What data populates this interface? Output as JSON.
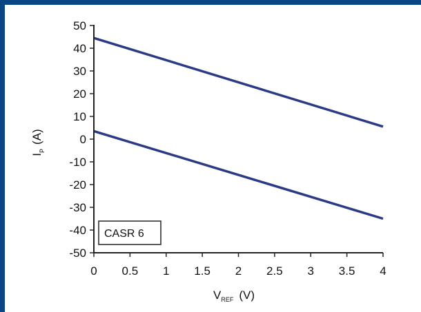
{
  "colors": {
    "frame": "#0a4683",
    "series": "#2a3a86",
    "axis": "#222222"
  },
  "chart_data": {
    "type": "line",
    "xlim": [
      0,
      4
    ],
    "ylim": [
      -50,
      50
    ],
    "xticks": [
      "0",
      "0.5",
      "1",
      "1.5",
      "2",
      "2.5",
      "3",
      "3.5",
      "4"
    ],
    "yticks": [
      "50",
      "40",
      "30",
      "20",
      "10",
      "0",
      "-10",
      "-20",
      "-30",
      "-40",
      "-50"
    ],
    "xlabel": {
      "main": "V",
      "sub": "REF",
      "unit": "(V)"
    },
    "ylabel": {
      "main": "I",
      "sub": "P",
      "unit": "(A)"
    },
    "grid": false,
    "annotation": "CASR 6",
    "series": [
      {
        "x": [
          0,
          4
        ],
        "y": [
          44.5,
          5.5
        ]
      },
      {
        "x": [
          0,
          4
        ],
        "y": [
          3.5,
          -35.0
        ]
      }
    ]
  }
}
